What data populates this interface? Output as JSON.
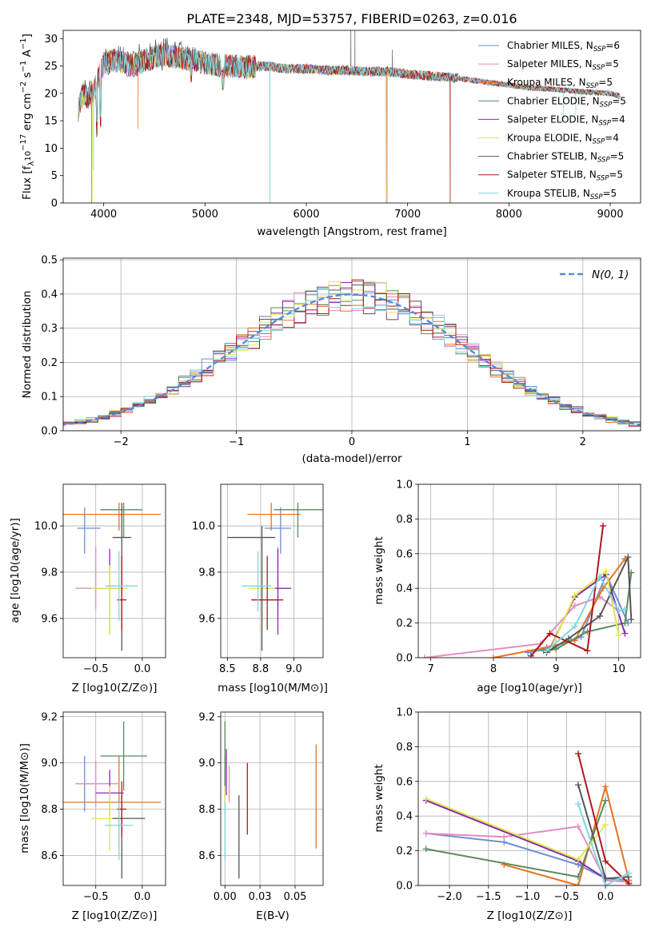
{
  "title": "PLATE=2348, MJD=53757, FIBERID=0263, z=0.016",
  "colors": {
    "Chabrier MILES": "#6c8fd6",
    "Salpeter MILES": "#e58cc0",
    "Kroupa MILES": "#e8731e",
    "Chabrier ELODIE": "#5b8a5e",
    "Salpeter ELODIE": "#8a2aa8",
    "Kroupa ELODIE": "#dfe851",
    "Chabrier STELIB": "#555555",
    "Salpeter STELIB": "#b0171e",
    "Kroupa STELIB": "#7fd6e0",
    "normal": "#5b8ad0"
  },
  "chart_data": [
    {
      "id": "spectrum",
      "type": "line",
      "xlabel": "wavelength [Angstrom, rest frame]",
      "ylabel": "Flux [f_λ 10^-17 erg cm^-2 s^-1 A^-1]",
      "xlim": [
        3600,
        9300
      ],
      "ylim": [
        0,
        31.5
      ],
      "xticks": [
        4000,
        5000,
        6000,
        7000,
        8000,
        9000
      ],
      "yticks": [
        0,
        5,
        10,
        15,
        20,
        25,
        30
      ],
      "grid": false,
      "legend_position": "top-right",
      "continuum": {
        "x": [
          3750,
          3800,
          3850,
          3900,
          3950,
          4000,
          4100,
          4200,
          4300,
          4400,
          4500,
          4600,
          4700,
          4800,
          4900,
          5000,
          5200,
          5400,
          5600,
          5800,
          6000,
          6200,
          6400,
          6600,
          6800,
          7000,
          7200,
          7400,
          7600,
          7800,
          8000,
          8200,
          8400,
          8600,
          8800,
          9000,
          9100
        ],
        "y": [
          17.5,
          20,
          19,
          20,
          23,
          25.5,
          26,
          25.5,
          25,
          26,
          26.5,
          27,
          26.8,
          26.3,
          26,
          25.5,
          25,
          24.8,
          25,
          24.5,
          24.5,
          24.2,
          24.2,
          24,
          24,
          23.5,
          23.2,
          23,
          22.5,
          22,
          21.5,
          21,
          20.8,
          20.5,
          20.2,
          20,
          19.5
        ]
      },
      "series": [
        {
          "name": "Chabrier MILES, N_SSP=6",
          "label_main": "Chabrier MILES, N",
          "label_sub": "SSP",
          "label_tail": "=6"
        },
        {
          "name": "Salpeter MILES, N_SSP=5",
          "label_main": "Salpeter MILES, N",
          "label_sub": "SSP",
          "label_tail": "=5"
        },
        {
          "name": "Kroupa MILES, N_SSP=5",
          "label_main": "Kroupa MILES, N",
          "label_sub": "SSP",
          "label_tail": "=5"
        },
        {
          "name": "Chabrier ELODIE, N_SSP=5",
          "label_main": "Chabrier ELODIE, N",
          "label_sub": "SSP",
          "label_tail": "=5"
        },
        {
          "name": "Salpeter ELODIE, N_SSP=4",
          "label_main": "Salpeter ELODIE, N",
          "label_sub": "SSP",
          "label_tail": "=4"
        },
        {
          "name": "Kroupa ELODIE, N_SSP=4",
          "label_main": "Kroupa ELODIE, N",
          "label_sub": "SSP",
          "label_tail": "=4"
        },
        {
          "name": "Chabrier STELIB, N_SSP=5",
          "label_main": "Chabrier STELIB, N",
          "label_sub": "SSP",
          "label_tail": "=5"
        },
        {
          "name": "Salpeter STELIB, N_SSP=5",
          "label_main": "Salpeter STELIB, N",
          "label_sub": "SSP",
          "label_tail": "=5"
        },
        {
          "name": "Kroupa STELIB, N_SSP=5",
          "label_main": "Kroupa STELIB, N",
          "label_sub": "SSP",
          "label_tail": "=5"
        }
      ]
    },
    {
      "id": "residual-histogram",
      "type": "histogram",
      "xlabel": "(data-model)/error",
      "ylabel": "Normed distribution",
      "xlim": [
        -2.5,
        2.5
      ],
      "ylim": [
        0,
        0.505
      ],
      "xticks": [
        -2,
        -1,
        0,
        1,
        2
      ],
      "yticks": [
        0.0,
        0.1,
        0.2,
        0.3,
        0.4,
        0.5
      ],
      "grid": true,
      "legend_position": "top-right",
      "normal_label": "N(0, 1)",
      "bin_width": 0.1
    },
    {
      "id": "age-vs-Z",
      "type": "errorbar",
      "xlabel": "Z [log10(Z/Z⊙)]",
      "ylabel": "age [log10(age/yr)]",
      "xlim": [
        -0.85,
        0.25
      ],
      "ylim": [
        9.43,
        10.18
      ],
      "xticks": [
        -0.5,
        0.0
      ],
      "yticks": [
        9.6,
        9.8,
        10.0
      ],
      "grid": true,
      "points": [
        {
          "series": "Chabrier MILES",
          "x": -0.62,
          "xerr": [
            0.08,
            0.17
          ],
          "y": 9.99,
          "yerr": [
            0.11,
            0.09
          ]
        },
        {
          "series": "Salpeter MILES",
          "x": -0.5,
          "xerr": [
            0.22,
            0.24
          ],
          "y": 9.73,
          "yerr": [
            0.09,
            0.18
          ]
        },
        {
          "series": "Kroupa MILES",
          "x": -0.25,
          "xerr": [
            0.6,
            0.45
          ],
          "y": 10.05,
          "yerr": [
            0.07,
            0.05
          ]
        },
        {
          "series": "Chabrier ELODIE",
          "x": -0.2,
          "xerr": [
            0.25,
            0.2
          ],
          "y": 10.07,
          "yerr": [
            0.12,
            0.03
          ]
        },
        {
          "series": "Salpeter ELODIE",
          "x": -0.35,
          "xerr": [
            0.15,
            0.15
          ],
          "y": 9.73,
          "yerr": [
            0.2,
            0.17
          ]
        },
        {
          "series": "Kroupa ELODIE",
          "x": -0.35,
          "xerr": [
            0.2,
            0.2
          ],
          "y": 9.73,
          "yerr": [
            0.2,
            0.1
          ]
        },
        {
          "series": "Chabrier STELIB",
          "x": -0.22,
          "xerr": [
            0.1,
            0.1
          ],
          "y": 9.95,
          "yerr": [
            0.49,
            0.15
          ]
        },
        {
          "series": "Salpeter STELIB",
          "x": -0.22,
          "xerr": [
            0.05,
            0.05
          ],
          "y": 9.68,
          "yerr": [
            0.13,
            0.19
          ]
        },
        {
          "series": "Kroupa STELIB",
          "x": -0.25,
          "xerr": [
            0.15,
            0.2
          ],
          "y": 9.74,
          "yerr": [
            0.15,
            0.15
          ]
        }
      ]
    },
    {
      "id": "age-vs-mass",
      "type": "errorbar",
      "xlabel": "mass [log10(M/M⊙)]",
      "ylabel": "",
      "xlim": [
        8.45,
        9.22
      ],
      "ylim": [
        9.43,
        10.18
      ],
      "xticks": [
        8.5,
        8.75,
        9.0
      ],
      "yticks": [
        9.6,
        9.8,
        10.0
      ],
      "grid": true,
      "points": [
        {
          "series": "Chabrier MILES",
          "x": 8.9,
          "xerr": [
            0.12,
            0.08
          ],
          "y": 9.99,
          "yerr": [
            0.11,
            0.09
          ]
        },
        {
          "series": "Salpeter MILES",
          "x": 8.88,
          "xerr": [
            0.05,
            0.05
          ],
          "y": 9.73,
          "yerr": [
            0.09,
            0.18
          ]
        },
        {
          "series": "Kroupa MILES",
          "x": 8.83,
          "xerr": [
            0.18,
            0.22
          ],
          "y": 10.05,
          "yerr": [
            0.07,
            0.05
          ]
        },
        {
          "series": "Chabrier ELODIE",
          "x": 9.03,
          "xerr": [
            0.18,
            0.2
          ],
          "y": 10.07,
          "yerr": [
            0.12,
            0.03
          ]
        },
        {
          "series": "Salpeter ELODIE",
          "x": 8.88,
          "xerr": [
            0.1,
            0.1
          ],
          "y": 9.73,
          "yerr": [
            0.2,
            0.17
          ]
        },
        {
          "series": "Kroupa ELODIE",
          "x": 8.76,
          "xerr": [
            0.1,
            0.1
          ],
          "y": 9.73,
          "yerr": [
            0.2,
            0.1
          ]
        },
        {
          "series": "Chabrier STELIB",
          "x": 8.76,
          "xerr": [
            0.26,
            0.1
          ],
          "y": 9.95,
          "yerr": [
            0.49,
            0.05
          ]
        },
        {
          "series": "Salpeter STELIB",
          "x": 8.8,
          "xerr": [
            0.12,
            0.12
          ],
          "y": 9.68,
          "yerr": [
            0.13,
            0.19
          ]
        },
        {
          "series": "Kroupa STELIB",
          "x": 8.73,
          "xerr": [
            0.12,
            0.1
          ],
          "y": 9.74,
          "yerr": [
            0.11,
            0.15
          ]
        }
      ]
    },
    {
      "id": "mass-weight-vs-age",
      "type": "line",
      "xlabel": "age [log10(age/yr)]",
      "ylabel": "mass weight",
      "xlim": [
        6.8,
        10.35
      ],
      "ylim": [
        0,
        1.0
      ],
      "xticks": [
        7,
        8,
        9,
        10
      ],
      "yticks": [
        0.0,
        0.2,
        0.4,
        0.6,
        0.8,
        1.0
      ],
      "grid": true,
      "series": [
        {
          "series": "Chabrier MILES",
          "x": [
            8.55,
            8.85,
            9.4,
            9.8,
            10.15
          ],
          "y": [
            0.03,
            0.05,
            0.12,
            0.48,
            0.2
          ]
        },
        {
          "series": "Salpeter MILES",
          "x": [
            6.9,
            8.75,
            9.3,
            9.7,
            10.0
          ],
          "y": [
            0.0,
            0.08,
            0.3,
            0.35,
            0.27
          ]
        },
        {
          "series": "Kroupa MILES",
          "x": [
            8.0,
            8.85,
            9.3,
            9.75,
            10.1
          ],
          "y": [
            0.0,
            0.06,
            0.1,
            0.4,
            0.57
          ]
        },
        {
          "series": "Chabrier ELODIE",
          "x": [
            8.8,
            9.0,
            9.5,
            10.1,
            10.2
          ],
          "y": [
            0.04,
            0.05,
            0.15,
            0.2,
            0.49
          ]
        },
        {
          "series": "Salpeter ELODIE",
          "x": [
            8.9,
            9.3,
            9.8,
            10.1
          ],
          "y": [
            0.05,
            0.35,
            0.48,
            0.14
          ]
        },
        {
          "series": "Kroupa ELODIE",
          "x": [
            8.9,
            9.3,
            9.8,
            10.0
          ],
          "y": [
            0.04,
            0.36,
            0.5,
            0.13
          ]
        },
        {
          "series": "Chabrier STELIB",
          "x": [
            8.85,
            9.2,
            9.7,
            10.15,
            10.2
          ],
          "y": [
            0.03,
            0.11,
            0.24,
            0.58,
            0.22
          ]
        },
        {
          "series": "Salpeter STELIB",
          "x": [
            8.6,
            8.9,
            9.5,
            9.75
          ],
          "y": [
            0.01,
            0.14,
            0.04,
            0.76
          ]
        },
        {
          "series": "Kroupa STELIB",
          "x": [
            8.85,
            9.3,
            9.7,
            10.0,
            10.1
          ],
          "y": [
            0.04,
            0.18,
            0.47,
            0.27,
            0.28
          ]
        }
      ]
    },
    {
      "id": "mass-vs-Z",
      "type": "errorbar",
      "xlabel": "Z [log10(Z/Z⊙)]",
      "ylabel": "mass [log10(M/M⊙)]",
      "xlim": [
        -0.85,
        0.25
      ],
      "ylim": [
        8.47,
        9.22
      ],
      "xticks": [
        -0.5,
        0.0
      ],
      "yticks": [
        8.6,
        8.8,
        9.0,
        9.2
      ],
      "grid": true,
      "points": [
        {
          "series": "Chabrier MILES",
          "x": -0.62,
          "xerr": [
            0.08,
            0.17
          ],
          "y": 8.91,
          "yerr": [
            0.12,
            0.12
          ]
        },
        {
          "series": "Salpeter MILES",
          "x": -0.5,
          "xerr": [
            0.22,
            0.24
          ],
          "y": 8.91,
          "yerr": [
            0.1,
            0.1
          ]
        },
        {
          "series": "Kroupa MILES",
          "x": -0.25,
          "xerr": [
            0.6,
            0.45
          ],
          "y": 8.83,
          "yerr": [
            0.2,
            0.2
          ]
        },
        {
          "series": "Chabrier ELODIE",
          "x": -0.2,
          "xerr": [
            0.25,
            0.25
          ],
          "y": 9.03,
          "yerr": [
            0.15,
            0.15
          ]
        },
        {
          "series": "Salpeter ELODIE",
          "x": -0.35,
          "xerr": [
            0.15,
            0.15
          ],
          "y": 8.87,
          "yerr": [
            0.1,
            0.1
          ]
        },
        {
          "series": "Kroupa ELODIE",
          "x": -0.35,
          "xerr": [
            0.2,
            0.2
          ],
          "y": 8.76,
          "yerr": [
            0.14,
            0.14
          ]
        },
        {
          "series": "Chabrier STELIB",
          "x": -0.22,
          "xerr": [
            0.1,
            0.25
          ],
          "y": 8.76,
          "yerr": [
            0.26,
            0.1
          ]
        },
        {
          "series": "Salpeter STELIB",
          "x": -0.22,
          "xerr": [
            0.05,
            0.05
          ],
          "y": 8.8,
          "yerr": [
            0.12,
            0.12
          ]
        },
        {
          "series": "Kroupa STELIB",
          "x": -0.25,
          "xerr": [
            0.15,
            0.15
          ],
          "y": 8.73,
          "yerr": [
            0.15,
            0.1
          ]
        }
      ]
    },
    {
      "id": "mass-vs-EBV",
      "type": "errorbar",
      "xlabel": "E(B-V)",
      "ylabel": "",
      "xlim": [
        -0.003,
        0.07
      ],
      "ylim": [
        8.47,
        9.22
      ],
      "xticks": [
        0.0,
        0.025,
        0.05
      ],
      "yticks": [
        8.6,
        8.8,
        9.0,
        9.2
      ],
      "grid": true,
      "points": [
        {
          "series": "Chabrier MILES",
          "x": 0.0,
          "y": 8.91,
          "yerr": [
            0.12,
            0.12
          ]
        },
        {
          "series": "Salpeter MILES",
          "x": 0.003,
          "y": 8.91,
          "yerr": [
            0.08,
            0.08
          ]
        },
        {
          "series": "Kroupa MILES",
          "x": 0.065,
          "y": 8.86,
          "yerr": [
            0.23,
            0.22
          ]
        },
        {
          "series": "Chabrier ELODIE",
          "x": 0.0,
          "y": 9.03,
          "yerr": [
            0.15,
            0.15
          ]
        },
        {
          "series": "Salpeter ELODIE",
          "x": 0.001,
          "y": 8.96,
          "yerr": [
            0.1,
            0.1
          ]
        },
        {
          "series": "Kroupa ELODIE",
          "x": 0.0,
          "y": 8.76,
          "yerr": [
            0.14,
            0.14
          ]
        },
        {
          "series": "Chabrier STELIB",
          "x": 0.01,
          "y": 8.76,
          "yerr": [
            0.26,
            0.1
          ]
        },
        {
          "series": "Salpeter STELIB",
          "x": 0.016,
          "y": 8.85,
          "yerr": [
            0.16,
            0.15
          ]
        },
        {
          "series": "Kroupa STELIB",
          "x": 0.0,
          "y": 8.73,
          "yerr": [
            0.15,
            0.1
          ]
        }
      ]
    },
    {
      "id": "mass-weight-vs-Z",
      "type": "line",
      "xlabel": "Z [log10(Z/Z⊙)]",
      "ylabel": "mass weight",
      "xlim": [
        -2.4,
        0.45
      ],
      "ylim": [
        0,
        1.0
      ],
      "xticks": [
        -2.0,
        -1.5,
        -1.0,
        -0.5,
        0.0
      ],
      "yticks": [
        0.0,
        0.2,
        0.4,
        0.6,
        0.8,
        1.0
      ],
      "grid": true,
      "series": [
        {
          "series": "Chabrier MILES",
          "x": [
            -2.3,
            -1.3,
            -0.35,
            0.0,
            0.3
          ],
          "y": [
            0.3,
            0.25,
            0.12,
            0.04,
            0.03
          ]
        },
        {
          "series": "Salpeter MILES",
          "x": [
            -2.3,
            -1.3,
            -0.35,
            0.0,
            0.3
          ],
          "y": [
            0.3,
            0.28,
            0.34,
            0.03,
            0.02
          ]
        },
        {
          "series": "Kroupa MILES",
          "x": [
            -1.3,
            -0.35,
            0.0,
            0.3
          ],
          "y": [
            0.12,
            0.0,
            0.57,
            0.03
          ]
        },
        {
          "series": "Chabrier ELODIE",
          "x": [
            -2.3,
            -0.35,
            0.0
          ],
          "y": [
            0.21,
            0.05,
            0.49
          ]
        },
        {
          "series": "Salpeter ELODIE",
          "x": [
            -2.3,
            -0.35,
            0.0
          ],
          "y": [
            0.49,
            0.14,
            0.04
          ]
        },
        {
          "series": "Kroupa ELODIE",
          "x": [
            -2.3,
            -0.35,
            0.0
          ],
          "y": [
            0.5,
            0.15,
            0.35
          ]
        },
        {
          "series": "Chabrier STELIB",
          "x": [
            -0.35,
            0.0,
            0.3
          ],
          "y": [
            0.58,
            0.04,
            0.05
          ]
        },
        {
          "series": "Salpeter STELIB",
          "x": [
            -0.35,
            0.0,
            0.3
          ],
          "y": [
            0.76,
            0.14,
            0.01
          ]
        },
        {
          "series": "Kroupa STELIB",
          "x": [
            -0.35,
            0.0,
            0.3
          ],
          "y": [
            0.47,
            0.0,
            0.07
          ]
        }
      ]
    }
  ]
}
